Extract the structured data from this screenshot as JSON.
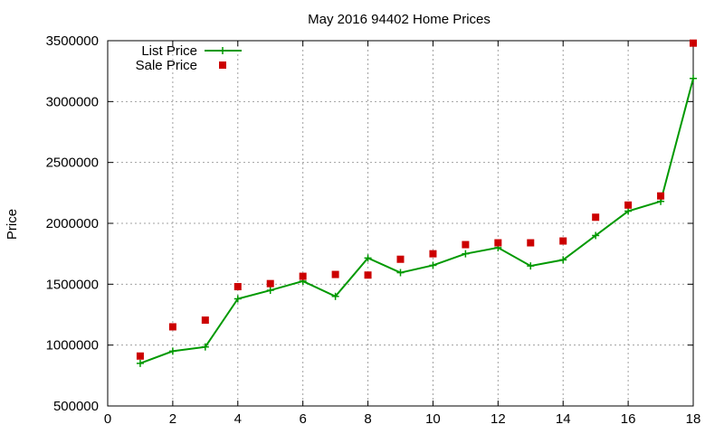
{
  "chart_data": {
    "type": "line",
    "title": "May 2016 94402 Home Prices",
    "xlabel": "",
    "ylabel": "Price",
    "xlim": [
      0,
      18
    ],
    "ylim": [
      500000,
      3500000
    ],
    "xticks": [
      0,
      2,
      4,
      6,
      8,
      10,
      12,
      14,
      16,
      18
    ],
    "yticks": [
      500000,
      1000000,
      1500000,
      2000000,
      2500000,
      3000000,
      3500000
    ],
    "grid": true,
    "legend_position": "top-left",
    "x": [
      1,
      2,
      3,
      4,
      5,
      6,
      7,
      8,
      9,
      10,
      11,
      12,
      13,
      14,
      15,
      16,
      17,
      18
    ],
    "series": [
      {
        "name": "List Price",
        "style": "lines+points",
        "color": "#009900",
        "values": [
          850000,
          950000,
          985000,
          1380000,
          1450000,
          1525000,
          1400000,
          1715000,
          1595000,
          1655000,
          1750000,
          1800000,
          1650000,
          1700000,
          1900000,
          2100000,
          2180000,
          3190000
        ]
      },
      {
        "name": "Sale Price",
        "style": "points",
        "color": "#cc0000",
        "values": [
          910000,
          1150000,
          1205000,
          1480000,
          1505000,
          1565000,
          1580000,
          1575000,
          1705000,
          1750000,
          1825000,
          1840000,
          1840000,
          1855000,
          2050000,
          2150000,
          2225000,
          3480000
        ]
      }
    ]
  }
}
